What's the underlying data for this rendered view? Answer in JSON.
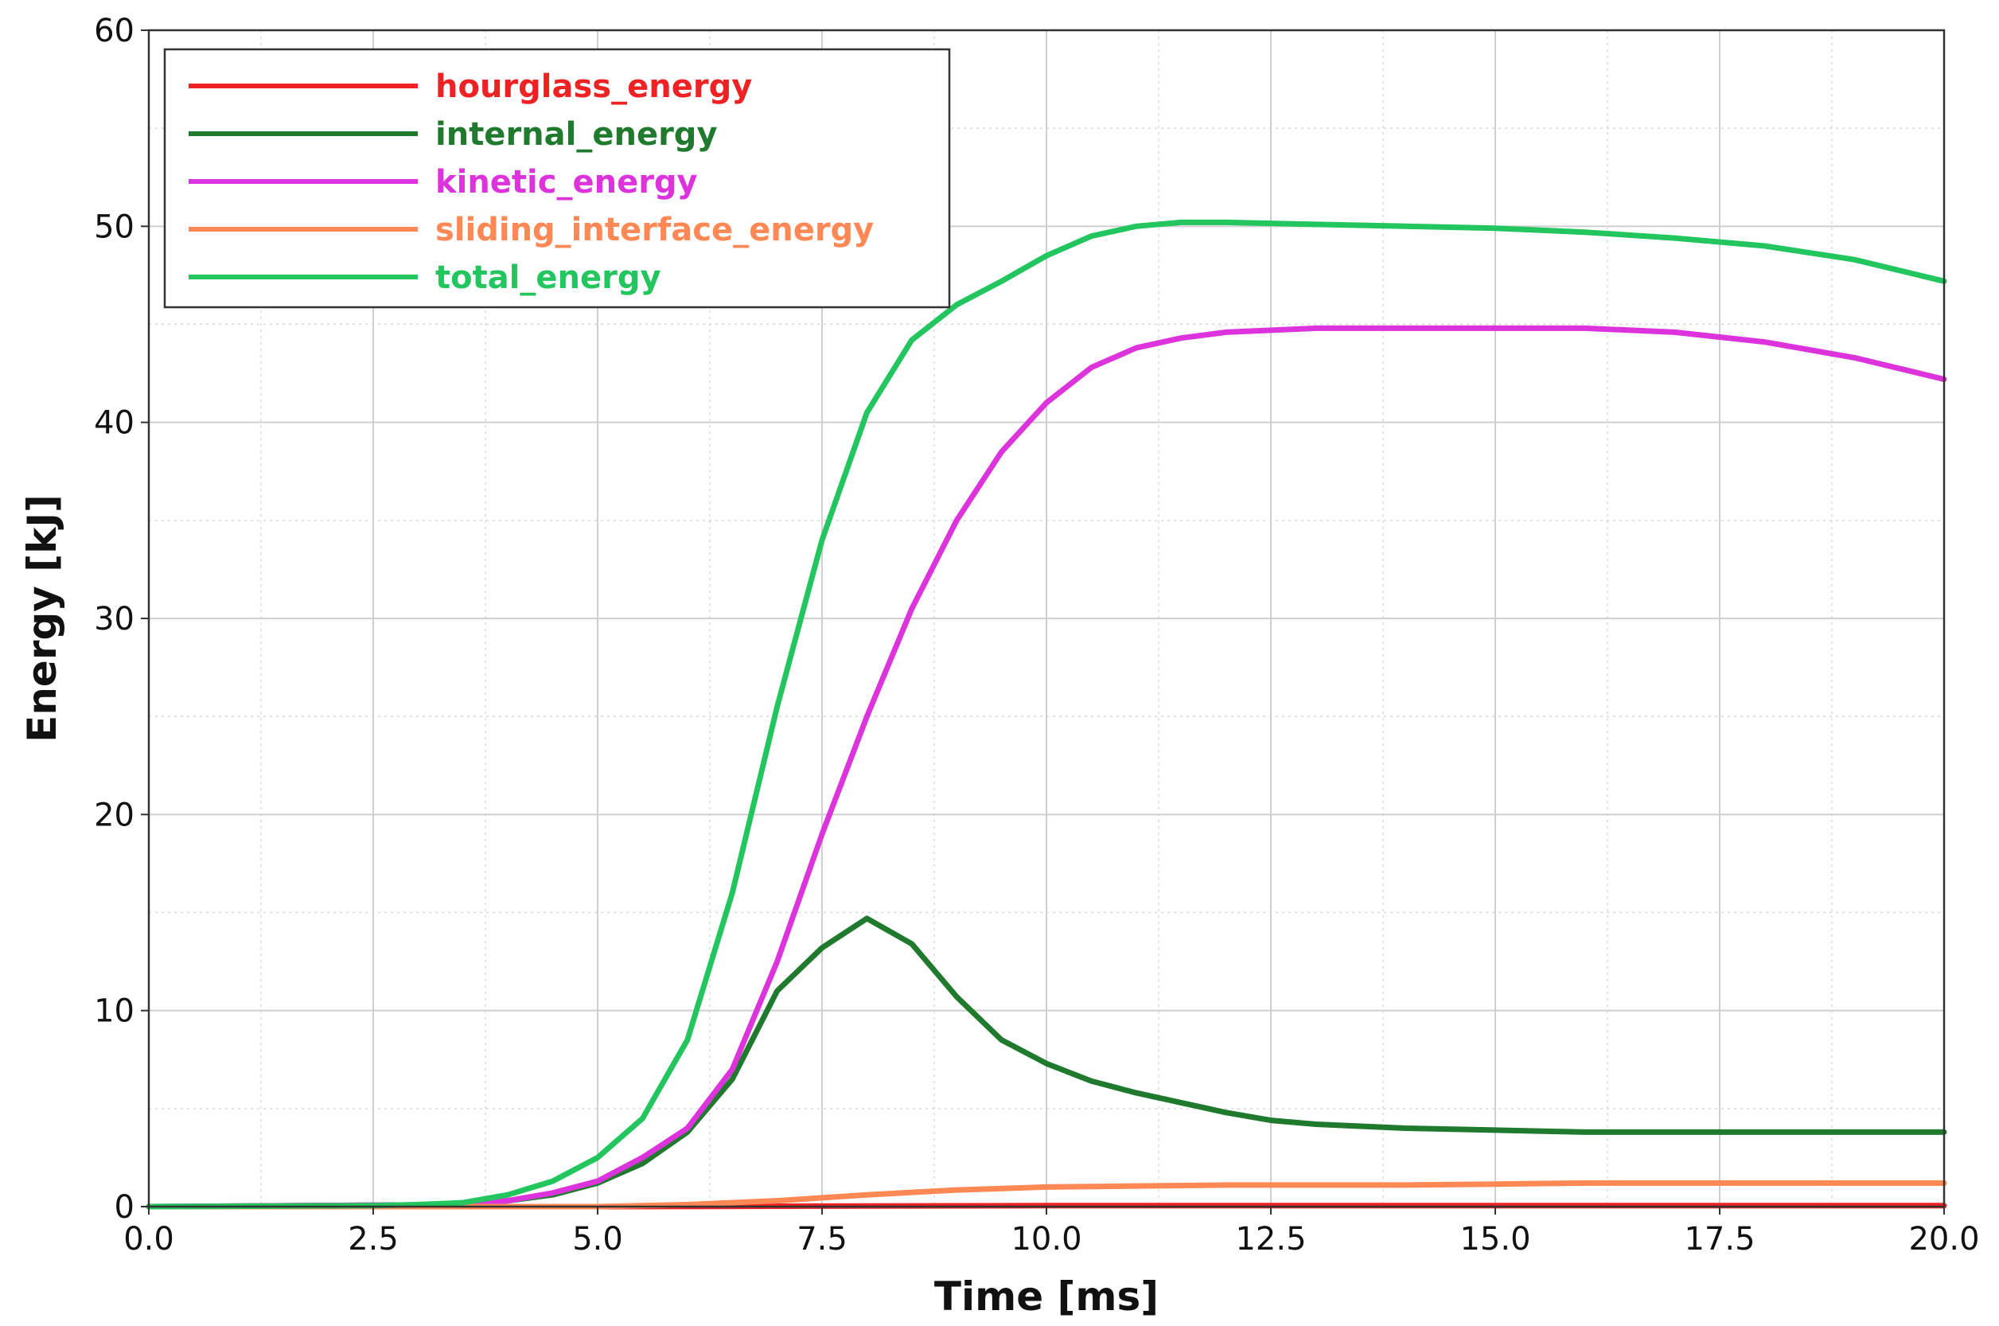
{
  "chart_data": {
    "type": "line",
    "xlabel": "Time [ms]",
    "ylabel": "Energy [kJ]",
    "xlim": [
      0,
      20
    ],
    "ylim": [
      0,
      60
    ],
    "x_ticks": [
      0,
      2.5,
      5,
      7.5,
      10,
      12.5,
      15,
      17.5,
      20
    ],
    "x_tick_labels": [
      "0.0",
      "2.5",
      "5.0",
      "7.5",
      "10.0",
      "12.5",
      "15.0",
      "17.5",
      "20.0"
    ],
    "y_ticks": [
      0,
      10,
      20,
      30,
      40,
      50,
      60
    ],
    "y_tick_labels": [
      "0",
      "10",
      "20",
      "30",
      "40",
      "50",
      "60"
    ],
    "grid": true,
    "legend_position": "top-left",
    "series": [
      {
        "name": "hourglass_energy",
        "color": "#ee2222",
        "points": [
          [
            0,
            0
          ],
          [
            5,
            0
          ],
          [
            10,
            0.05
          ],
          [
            15,
            0.05
          ],
          [
            20,
            0.05
          ]
        ]
      },
      {
        "name": "internal_energy",
        "color": "#1f7a2e",
        "points": [
          [
            0,
            0
          ],
          [
            3.5,
            0.1
          ],
          [
            4,
            0.3
          ],
          [
            4.5,
            0.6
          ],
          [
            5,
            1.2
          ],
          [
            5.5,
            2.2
          ],
          [
            6,
            3.8
          ],
          [
            6.5,
            6.5
          ],
          [
            7,
            11
          ],
          [
            7.5,
            13.2
          ],
          [
            8,
            14.7
          ],
          [
            8.5,
            13.4
          ],
          [
            9,
            10.7
          ],
          [
            9.5,
            8.5
          ],
          [
            10,
            7.3
          ],
          [
            10.5,
            6.4
          ],
          [
            11,
            5.8
          ],
          [
            11.5,
            5.3
          ],
          [
            12,
            4.8
          ],
          [
            12.5,
            4.4
          ],
          [
            13,
            4.2
          ],
          [
            14,
            4.0
          ],
          [
            15,
            3.9
          ],
          [
            16,
            3.8
          ],
          [
            17,
            3.8
          ],
          [
            18,
            3.8
          ],
          [
            19,
            3.8
          ],
          [
            20,
            3.8
          ]
        ]
      },
      {
        "name": "kinetic_energy",
        "color": "#dd33dd",
        "points": [
          [
            0,
            0
          ],
          [
            3.5,
            0.1
          ],
          [
            4,
            0.3
          ],
          [
            4.5,
            0.7
          ],
          [
            5,
            1.3
          ],
          [
            5.5,
            2.5
          ],
          [
            6,
            4.0
          ],
          [
            6.5,
            7.0
          ],
          [
            7,
            12.5
          ],
          [
            7.5,
            19
          ],
          [
            8,
            25
          ],
          [
            8.5,
            30.5
          ],
          [
            9,
            35
          ],
          [
            9.5,
            38.5
          ],
          [
            10,
            41
          ],
          [
            10.5,
            42.8
          ],
          [
            11,
            43.8
          ],
          [
            11.5,
            44.3
          ],
          [
            12,
            44.6
          ],
          [
            13,
            44.8
          ],
          [
            14,
            44.8
          ],
          [
            15,
            44.8
          ],
          [
            16,
            44.8
          ],
          [
            17,
            44.6
          ],
          [
            18,
            44.1
          ],
          [
            19,
            43.3
          ],
          [
            20,
            42.2
          ]
        ]
      },
      {
        "name": "sliding_interface_energy",
        "color": "#ff8855",
        "points": [
          [
            0,
            0
          ],
          [
            5,
            0
          ],
          [
            6,
            0.1
          ],
          [
            7,
            0.3
          ],
          [
            8,
            0.6
          ],
          [
            9,
            0.85
          ],
          [
            10,
            1.0
          ],
          [
            11,
            1.05
          ],
          [
            12,
            1.1
          ],
          [
            13,
            1.1
          ],
          [
            14,
            1.1
          ],
          [
            15,
            1.15
          ],
          [
            16,
            1.2
          ],
          [
            17,
            1.2
          ],
          [
            18,
            1.2
          ],
          [
            19,
            1.2
          ],
          [
            20,
            1.2
          ]
        ]
      },
      {
        "name": "total_energy",
        "color": "#22c55e",
        "points": [
          [
            0,
            0
          ],
          [
            2.5,
            0.05
          ],
          [
            3,
            0.1
          ],
          [
            3.5,
            0.2
          ],
          [
            4,
            0.6
          ],
          [
            4.5,
            1.3
          ],
          [
            5,
            2.5
          ],
          [
            5.5,
            4.5
          ],
          [
            6,
            8.5
          ],
          [
            6.5,
            16
          ],
          [
            7,
            25.5
          ],
          [
            7.5,
            34
          ],
          [
            8,
            40.5
          ],
          [
            8.5,
            44.2
          ],
          [
            9,
            46
          ],
          [
            9.5,
            47.2
          ],
          [
            10,
            48.5
          ],
          [
            10.5,
            49.5
          ],
          [
            11,
            50.0
          ],
          [
            11.5,
            50.2
          ],
          [
            12,
            50.2
          ],
          [
            13,
            50.1
          ],
          [
            14,
            50.0
          ],
          [
            15,
            49.9
          ],
          [
            16,
            49.7
          ],
          [
            17,
            49.4
          ],
          [
            18,
            49.0
          ],
          [
            19,
            48.3
          ],
          [
            20,
            47.2
          ]
        ]
      }
    ]
  }
}
